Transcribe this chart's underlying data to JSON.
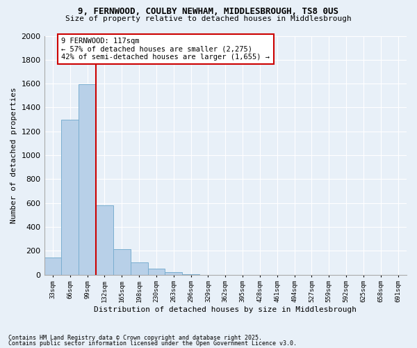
{
  "title_line1": "9, FERNWOOD, COULBY NEWHAM, MIDDLESBROUGH, TS8 0US",
  "title_line2": "Size of property relative to detached houses in Middlesbrough",
  "xlabel": "Distribution of detached houses by size in Middlesbrough",
  "ylabel": "Number of detached properties",
  "categories": [
    "33sqm",
    "66sqm",
    "99sqm",
    "132sqm",
    "165sqm",
    "198sqm",
    "230sqm",
    "263sqm",
    "296sqm",
    "329sqm",
    "362sqm",
    "395sqm",
    "428sqm",
    "461sqm",
    "494sqm",
    "527sqm",
    "559sqm",
    "592sqm",
    "625sqm",
    "658sqm",
    "691sqm"
  ],
  "values": [
    145,
    1295,
    1595,
    580,
    215,
    100,
    50,
    20,
    5,
    0,
    0,
    0,
    0,
    0,
    0,
    0,
    0,
    0,
    0,
    0,
    0
  ],
  "bar_color": "#b8d0e8",
  "bar_edge_color": "#7aaed0",
  "vline_color": "#cc0000",
  "annotation_text": "9 FERNWOOD: 117sqm\n← 57% of detached houses are smaller (2,275)\n42% of semi-detached houses are larger (1,655) →",
  "annotation_box_color": "#ffffff",
  "annotation_box_edge": "#cc0000",
  "ylim": [
    0,
    2000
  ],
  "yticks": [
    0,
    200,
    400,
    600,
    800,
    1000,
    1200,
    1400,
    1600,
    1800,
    2000
  ],
  "background_color": "#e8f0f8",
  "grid_color": "#ffffff",
  "footnote1": "Contains HM Land Registry data © Crown copyright and database right 2025.",
  "footnote2": "Contains public sector information licensed under the Open Government Licence v3.0."
}
